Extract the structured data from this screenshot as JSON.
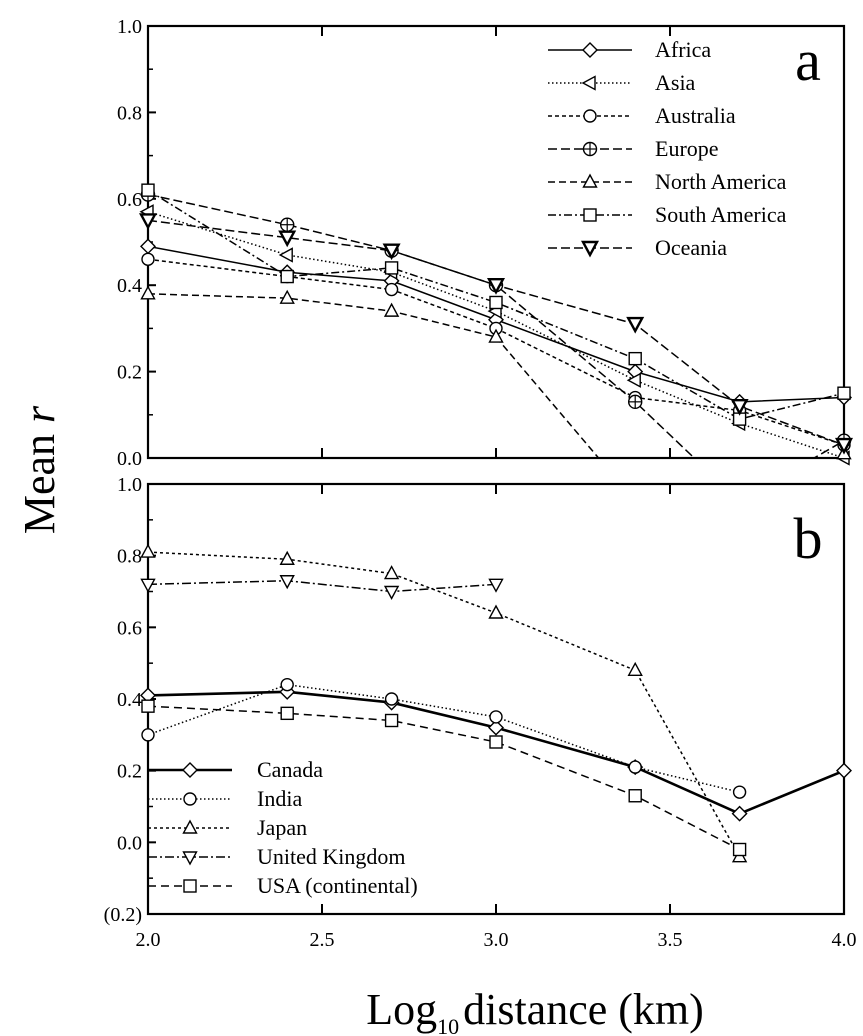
{
  "chart_data": [
    {
      "panel": "a",
      "type": "line",
      "panel_label": "a",
      "x": [
        2.0,
        2.4,
        2.7,
        3.0,
        3.4,
        3.7,
        4.0
      ],
      "x_ticks": [
        2.0,
        2.5,
        3.0,
        3.5,
        4.0
      ],
      "xlim": [
        2.0,
        4.0
      ],
      "ylim": [
        0.0,
        1.0
      ],
      "y_ticks": [
        0.0,
        0.2,
        0.4,
        0.6,
        0.8,
        1.0
      ],
      "y_tick_labels": [
        "0.0",
        "0.2",
        "0.4",
        "0.6",
        "0.8",
        "1.0"
      ],
      "legend_position": "top-right",
      "series": [
        {
          "name": "Africa",
          "marker": "diamond",
          "dash": "solid",
          "values": [
            0.49,
            0.43,
            0.41,
            0.32,
            0.2,
            0.13,
            0.14
          ]
        },
        {
          "name": "Asia",
          "marker": "triangle-left",
          "dash": "dotted",
          "values": [
            0.57,
            0.47,
            0.43,
            0.34,
            0.18,
            0.08,
            0.0
          ]
        },
        {
          "name": "Australia",
          "marker": "circle",
          "dash": "dashed",
          "values": [
            0.46,
            0.42,
            0.39,
            0.3,
            0.14,
            0.11,
            0.03
          ]
        },
        {
          "name": "Europe",
          "marker": "circle-plus",
          "dash": "dash-long",
          "values": [
            0.61,
            0.54,
            0.48,
            0.4,
            0.13,
            -0.1,
            0.04
          ]
        },
        {
          "name": "North America",
          "marker": "triangle-up",
          "dash": "dash-med",
          "values": [
            0.38,
            0.37,
            0.34,
            0.28,
            -0.1,
            -0.1,
            0.01
          ]
        },
        {
          "name": "South America",
          "marker": "square",
          "dash": "dash-dot",
          "values": [
            0.62,
            0.42,
            0.44,
            0.36,
            0.23,
            0.09,
            0.15
          ]
        },
        {
          "name": "Oceania",
          "marker": "triangle-down-filled",
          "dash": "dash-long",
          "values": [
            0.55,
            0.51,
            0.48,
            0.4,
            0.31,
            0.12,
            0.03
          ]
        }
      ]
    },
    {
      "panel": "b",
      "type": "line",
      "panel_label": "b",
      "x": [
        2.0,
        2.4,
        2.7,
        3.0,
        3.4,
        3.7,
        4.0
      ],
      "x_ticks": [
        2.0,
        2.5,
        3.0,
        3.5,
        4.0
      ],
      "x_tick_labels": [
        "2.0",
        "2.5",
        "3.0",
        "3.5",
        "4.0"
      ],
      "xlim": [
        2.0,
        4.0
      ],
      "ylim": [
        -0.2,
        1.0
      ],
      "y_ticks": [
        -0.2,
        0.0,
        0.2,
        0.4,
        0.6,
        0.8,
        1.0
      ],
      "y_tick_labels": [
        "(0.2)",
        "0.0",
        "0.2",
        "0.4",
        "0.6",
        "0.8",
        "1.0"
      ],
      "legend_position": "bottom-left",
      "series": [
        {
          "name": "Canada",
          "marker": "diamond",
          "dash": "solid-thick",
          "values": [
            0.41,
            0.42,
            0.39,
            0.32,
            0.21,
            0.08,
            0.2
          ]
        },
        {
          "name": "India",
          "marker": "circle",
          "dash": "dotted",
          "values": [
            0.3,
            0.44,
            0.4,
            0.35,
            0.21,
            0.14,
            null
          ]
        },
        {
          "name": "Japan",
          "marker": "triangle-up",
          "dash": "dashed",
          "values": [
            0.81,
            0.79,
            0.75,
            0.64,
            0.48,
            -0.04,
            null
          ]
        },
        {
          "name": "United Kingdom",
          "marker": "triangle-down",
          "dash": "dash-dot",
          "values": [
            0.72,
            0.73,
            0.7,
            0.72,
            null,
            null,
            null
          ]
        },
        {
          "name": "USA (continental)",
          "marker": "square",
          "dash": "dash-long",
          "values": [
            0.38,
            0.36,
            0.34,
            0.28,
            0.13,
            -0.02,
            null
          ]
        }
      ]
    }
  ],
  "axes": {
    "ylabel_main": "Mean ",
    "ylabel_italic": "r",
    "xlabel_prefix": "Log",
    "xlabel_subscript": "10",
    "xlabel_suffix": "distance (km)"
  }
}
